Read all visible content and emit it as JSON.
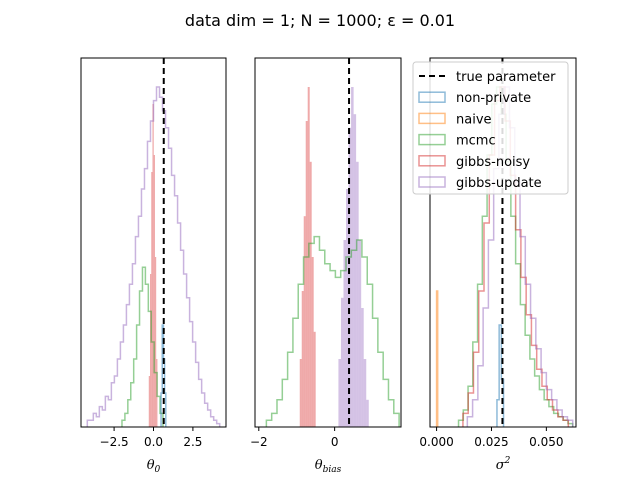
{
  "chart_data": {
    "type": "histogram",
    "title": "data dim  = 1; N = 1000; ε = 0.01",
    "colors": {
      "non-private": "#1f77b4",
      "naive": "#ff7f0e",
      "mcmc": "#2ca02c",
      "gibbs-noisy": "#d62728",
      "gibbs-update": "#9467bd",
      "true parameter": "#000000"
    },
    "legend": {
      "placement": "top-right of third panel",
      "entries": [
        "true parameter",
        "non-private",
        "naive",
        "mcmc",
        "gibbs-noisy",
        "gibbs-update"
      ]
    },
    "panels": [
      {
        "xlabel": "θ",
        "xlabel_sub": "0",
        "xlim": [
          -4.6,
          4.6
        ],
        "xticks": [
          -2.5,
          0.0,
          2.5
        ],
        "xtick_labels": [
          "−2.5",
          "0.0",
          "2.5"
        ],
        "true_parameter": 0.65,
        "series": [
          {
            "name": "gibbs-update",
            "fill": false,
            "x0": -4.2,
            "x1": 4.2,
            "heights": [
              0.02,
              0.02,
              0.04,
              0.03,
              0.06,
              0.05,
              0.09,
              0.08,
              0.13,
              0.15,
              0.2,
              0.25,
              0.3,
              0.36,
              0.42,
              0.48,
              0.56,
              0.62,
              0.7,
              0.76,
              0.84,
              0.9,
              0.96,
              1.0,
              0.97,
              0.93,
              0.88,
              0.82,
              0.74,
              0.68,
              0.6,
              0.52,
              0.45,
              0.38,
              0.31,
              0.25,
              0.19,
              0.14,
              0.1,
              0.07,
              0.05,
              0.03,
              0.02,
              0.01
            ]
          },
          {
            "name": "mcmc",
            "fill": false,
            "x0": -2.0,
            "x1": 0.6,
            "heights": [
              0.02,
              0.04,
              0.08,
              0.13,
              0.2,
              0.3,
              0.4,
              0.47,
              0.42,
              0.34,
              0.25,
              0.16,
              0.09,
              0.04
            ]
          },
          {
            "name": "gibbs-noisy",
            "fill": true,
            "x0": -0.3,
            "x1": 0.25,
            "heights": [
              0.15,
              0.45,
              0.75,
              0.95,
              0.8,
              0.5,
              0.2
            ]
          },
          {
            "name": "non-private",
            "fill": false,
            "x0": 0.48,
            "x1": 0.78,
            "heights": [
              0.1,
              0.3,
              0.2,
              0.1
            ]
          }
        ]
      },
      {
        "xlabel": "θ",
        "xlabel_sub": "bias",
        "xlim": [
          -2.1,
          1.75
        ],
        "xticks": [
          -2,
          0
        ],
        "xtick_labels": [
          "−2",
          "0"
        ],
        "true_parameter": 0.38,
        "series": [
          {
            "name": "mcmc",
            "fill": false,
            "x0": -1.8,
            "x1": 1.7,
            "heights": [
              0.02,
              0.04,
              0.08,
              0.14,
              0.22,
              0.32,
              0.42,
              0.5,
              0.54,
              0.56,
              0.52,
              0.48,
              0.46,
              0.44,
              0.46,
              0.5,
              0.52,
              0.55,
              0.5,
              0.42,
              0.32,
              0.22,
              0.14,
              0.08,
              0.04
            ]
          },
          {
            "name": "gibbs-noisy",
            "fill": true,
            "x0": -0.92,
            "x1": -0.5,
            "heights": [
              0.2,
              0.4,
              0.62,
              0.9,
              1.0,
              0.78,
              0.5,
              0.28
            ]
          },
          {
            "name": "gibbs-update",
            "fill": true,
            "x0": 0.1,
            "x1": 0.9,
            "heights": [
              0.2,
              0.38,
              0.55,
              0.7,
              0.88,
              1.0,
              0.92,
              0.78,
              0.55,
              0.35,
              0.2,
              0.08
            ]
          }
        ]
      },
      {
        "xlabel": "σ",
        "xlabel_sup": "2",
        "xlim": [
          -0.003,
          0.0635
        ],
        "xticks": [
          0.0,
          0.025,
          0.05
        ],
        "xtick_labels": [
          "0.000",
          "0.025",
          "0.050"
        ],
        "true_parameter": 0.03,
        "series": [
          {
            "name": "mcmc",
            "fill": false,
            "x0": 0.01,
            "x1": 0.062,
            "heights": [
              0.02,
              0.05,
              0.12,
              0.25,
              0.42,
              0.62,
              0.8,
              0.95,
              1.0,
              0.92,
              0.78,
              0.62,
              0.48,
              0.36,
              0.27,
              0.2,
              0.15,
              0.11,
              0.08,
              0.06,
              0.04,
              0.03,
              0.02,
              0.01
            ]
          },
          {
            "name": "gibbs-noisy",
            "fill": false,
            "x0": 0.012,
            "x1": 0.06,
            "heights": [
              0.04,
              0.1,
              0.22,
              0.4,
              0.6,
              0.8,
              0.96,
              1.0,
              0.9,
              0.74,
              0.58,
              0.44,
              0.33,
              0.24,
              0.17,
              0.12,
              0.08,
              0.05,
              0.03,
              0.02
            ]
          },
          {
            "name": "gibbs-update",
            "fill": false,
            "x0": 0.014,
            "x1": 0.062,
            "heights": [
              0.03,
              0.08,
              0.18,
              0.35,
              0.55,
              0.76,
              0.92,
              1.0,
              0.88,
              0.72,
              0.56,
              0.42,
              0.32,
              0.23,
              0.16,
              0.11,
              0.08,
              0.05,
              0.03,
              0.02
            ]
          },
          {
            "name": "naive",
            "fill": false,
            "x0": 0.0,
            "x1": 0.0005,
            "heights": [
              0.4
            ]
          },
          {
            "name": "non-private",
            "fill": false,
            "x0": 0.0275,
            "x1": 0.0305,
            "heights": [
              0.08,
              0.3,
              0.14
            ]
          }
        ]
      }
    ]
  }
}
